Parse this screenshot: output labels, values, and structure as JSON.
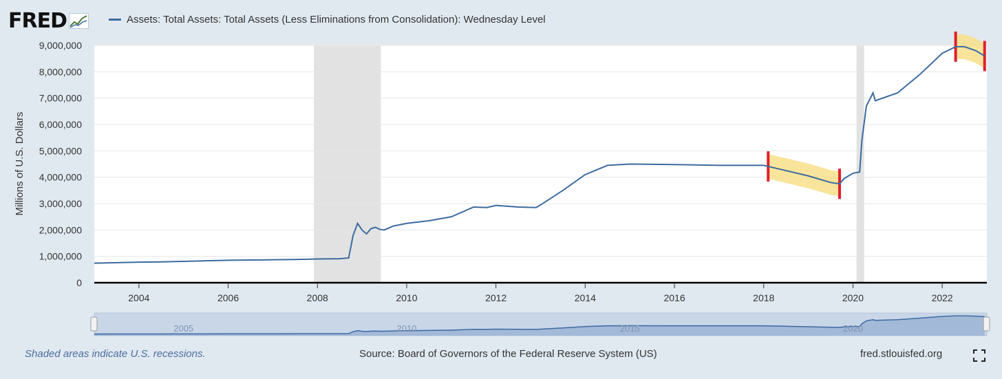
{
  "logo": {
    "text": "FRED"
  },
  "legend": {
    "label": "Assets: Total Assets: Total Assets (Less Eliminations from Consolidation): Wednesday Level"
  },
  "footer": {
    "recessions_note": "Shaded areas indicate U.S. recessions.",
    "source": "Source: Board of Governors of the Federal Reserve System (US)",
    "site": "fred.stlouisfed.org"
  },
  "colors": {
    "line": "#3c6aa0",
    "recession": "#e2e2e2",
    "highlight": "#f7e08a",
    "marker": "#e0202a",
    "navigator": "#9fb6d6"
  },
  "chart_data": {
    "type": "line",
    "title": "Assets: Total Assets: Total Assets (Less Eliminations from Consolidation): Wednesday Level",
    "xlabel": "",
    "ylabel": "Millions of U.S. Dollars",
    "xlim": [
      2003.0,
      2023.0
    ],
    "ylim": [
      0,
      9000000
    ],
    "yticks": [
      0,
      1000000,
      2000000,
      3000000,
      4000000,
      5000000,
      6000000,
      7000000,
      8000000,
      9000000
    ],
    "ytick_labels": [
      "0",
      "1,000,000",
      "2,000,000",
      "3,000,000",
      "4,000,000",
      "5,000,000",
      "6,000,000",
      "7,000,000",
      "8,000,000",
      "9,000,000"
    ],
    "xticks": [
      2004,
      2006,
      2008,
      2010,
      2012,
      2014,
      2016,
      2018,
      2020,
      2022
    ],
    "xtick_labels": [
      "2004",
      "2006",
      "2008",
      "2010",
      "2012",
      "2014",
      "2016",
      "2018",
      "2020",
      "2022"
    ],
    "navigator_labels": [
      {
        "x": 2005,
        "label": "2005"
      },
      {
        "x": 2010,
        "label": "2010"
      },
      {
        "x": 2015,
        "label": "2015"
      },
      {
        "x": 2020,
        "label": "2020"
      }
    ],
    "recessions": [
      [
        2007.92,
        2009.42
      ],
      [
        2020.08,
        2020.25
      ]
    ],
    "highlights": [
      [
        2018.1,
        2019.7
      ],
      [
        2022.3,
        2022.95
      ]
    ],
    "series": [
      {
        "name": "Total Assets",
        "x": [
          2003.0,
          2003.5,
          2004.0,
          2004.5,
          2005.0,
          2005.5,
          2006.0,
          2006.5,
          2007.0,
          2007.5,
          2008.0,
          2008.5,
          2008.7,
          2008.8,
          2008.9,
          2009.0,
          2009.1,
          2009.2,
          2009.3,
          2009.4,
          2009.5,
          2009.7,
          2010.0,
          2010.5,
          2011.0,
          2011.5,
          2011.8,
          2012.0,
          2012.5,
          2012.9,
          2013.0,
          2013.5,
          2014.0,
          2014.5,
          2015.0,
          2016.0,
          2017.0,
          2018.0,
          2018.5,
          2019.0,
          2019.5,
          2019.7,
          2019.8,
          2020.0,
          2020.15,
          2020.2,
          2020.3,
          2020.45,
          2020.5,
          2021.0,
          2021.5,
          2022.0,
          2022.3,
          2022.5,
          2022.75,
          2022.95
        ],
        "y": [
          740000,
          760000,
          780000,
          790000,
          810000,
          830000,
          850000,
          860000,
          870000,
          880000,
          900000,
          910000,
          940000,
          1800000,
          2250000,
          2000000,
          1850000,
          2050000,
          2100000,
          2020000,
          2000000,
          2150000,
          2250000,
          2350000,
          2500000,
          2870000,
          2850000,
          2930000,
          2870000,
          2850000,
          2950000,
          3500000,
          4100000,
          4450000,
          4500000,
          4480000,
          4450000,
          4450000,
          4250000,
          4050000,
          3800000,
          3750000,
          3950000,
          4150000,
          4200000,
          5400000,
          6700000,
          7200000,
          6900000,
          7200000,
          7900000,
          8700000,
          8950000,
          8950000,
          8800000,
          8600000
        ]
      }
    ]
  }
}
